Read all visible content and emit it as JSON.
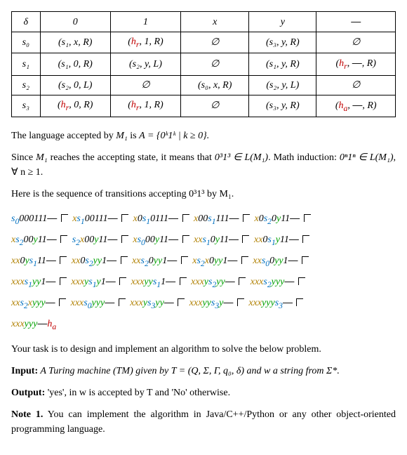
{
  "table": {
    "headers": [
      "δ",
      "0",
      "1",
      "x",
      "y",
      "—"
    ],
    "rows": [
      [
        "s₀",
        "(s₁, x, R)",
        "(h_r, 1, R)",
        "∅",
        "(s₃, y, R)",
        "∅"
      ],
      [
        "s₁",
        "(s₁, 0, R)",
        "(s₂, y, L)",
        "∅",
        "(s₁, y, R)",
        "(h_r, —, R)"
      ],
      [
        "s₂",
        "(s₂, 0, L)",
        "∅",
        "(s₀, x, R)",
        "(s₂, y, L)",
        "∅"
      ],
      [
        "s₃",
        "(h_r, 0, R)",
        "(h_r, 1, R)",
        "∅",
        "(s₃, y, R)",
        "(h_a, —, R)"
      ]
    ]
  },
  "paragraphs": {
    "p1_pre": "The language accepted by ",
    "p1_m": "M₁",
    "p1_mid": " is ",
    "p1_set": "A = {0ᵏ1ᵏ | k ≥ 0}.",
    "p2_a": "Since ",
    "p2_b": " reaches the accepting state, it means that ",
    "p2_c": "0³1³ ∈ L(M₁)",
    "p2_d": ". Math induction: ",
    "p2_e": "0ⁿ1ⁿ ∈ L(M₁)",
    "p2_f": ", ∀ n ≥ 1.",
    "p3": "Here is the sequence of transitions accepting 0³1³ by M₁.",
    "p4": "Your task is to design and implement an algorithm to solve the below problem.",
    "p5_label": "Input:",
    "p5_text": " A Turing machine (TM) given by T = (Q, Σ, Γ, q₀, δ) and w a string from Σ*.",
    "p6_label": "Output:",
    "p6_text": " 'yes', in w is accepted by T and 'No' otherwise.",
    "p7_label": "Note 1.",
    "p7_text": " You can implement the algorithm in Java/C++/Python or any other object-oriented programming language."
  },
  "trans": [
    [
      {
        "p": "",
        "s": "s₀",
        "sc": "s0",
        "t": "000111",
        "b": true
      },
      {
        "p": "x",
        "s": "s₁",
        "sc": "s1",
        "t": "00111",
        "b": true
      },
      {
        "p": "x0",
        "s": "s₁",
        "sc": "s1",
        "t": "0111",
        "b": true
      },
      {
        "p": "x00",
        "s": "s₁",
        "sc": "s1",
        "t": "111",
        "b": true
      },
      {
        "p": "x0",
        "s": "s₂",
        "sc": "s2",
        "t": "0y11",
        "b": true
      }
    ],
    [
      {
        "p": "x",
        "s": "s₂",
        "sc": "s2",
        "t": "00y11",
        "b": true
      },
      {
        "p": "",
        "s": "s₂",
        "sc": "s2",
        "t": "x00y11",
        "b": true
      },
      {
        "p": "x",
        "s": "s₀",
        "sc": "s0",
        "t": "00y11",
        "b": true
      },
      {
        "p": "xx",
        "s": "s₁",
        "sc": "s1",
        "t": "0y11",
        "b": true
      },
      {
        "p": "xx0",
        "s": "s₁",
        "sc": "s1",
        "t": "y11",
        "b": true
      }
    ],
    [
      {
        "p": "xx0y",
        "s": "s₁",
        "sc": "s1",
        "t": "11",
        "b": true
      },
      {
        "p": "xx0",
        "s": "s₂",
        "sc": "s2",
        "t": "yy1",
        "b": true
      },
      {
        "p": "xx",
        "s": "s₂",
        "sc": "s2",
        "t": "0yy1",
        "b": true
      },
      {
        "p": "x",
        "s": "s₂",
        "sc": "s2",
        "t": "x0yy1",
        "b": true
      },
      {
        "p": "xx",
        "s": "s₀",
        "sc": "s0",
        "t": "0yy1",
        "b": true
      }
    ],
    [
      {
        "p": "xxx",
        "s": "s₁",
        "sc": "s1",
        "t": "yy1",
        "b": true
      },
      {
        "p": "xxxy",
        "s": "s₁",
        "sc": "s1",
        "t": "y1",
        "b": true
      },
      {
        "p": "xxxyy",
        "s": "s₁",
        "sc": "s1",
        "t": "1",
        "b": true
      },
      {
        "p": "xxxy",
        "s": "s₂",
        "sc": "s2",
        "t": "yy",
        "b": true
      },
      {
        "p": "xxx",
        "s": "s₂",
        "sc": "s2",
        "t": "yyy",
        "b": true
      }
    ],
    [
      {
        "p": "xx",
        "s": "s₂",
        "sc": "s2",
        "t": "xyyy",
        "b": true
      },
      {
        "p": "xxx",
        "s": "s₀",
        "sc": "s0",
        "t": "yyy",
        "b": true
      },
      {
        "p": "xxxy",
        "s": "s₃",
        "sc": "s3",
        "t": "yy",
        "b": true
      },
      {
        "p": "xxxyy",
        "s": "s₃",
        "sc": "s3",
        "t": "y",
        "b": true
      },
      {
        "p": "xxxyyy",
        "s": "s₃",
        "sc": "s3",
        "t": "",
        "b": true
      }
    ],
    [
      {
        "p": "xxxyyy",
        "s": "",
        "sc": "",
        "t": "",
        "b": true,
        "ha": true
      }
    ]
  ]
}
